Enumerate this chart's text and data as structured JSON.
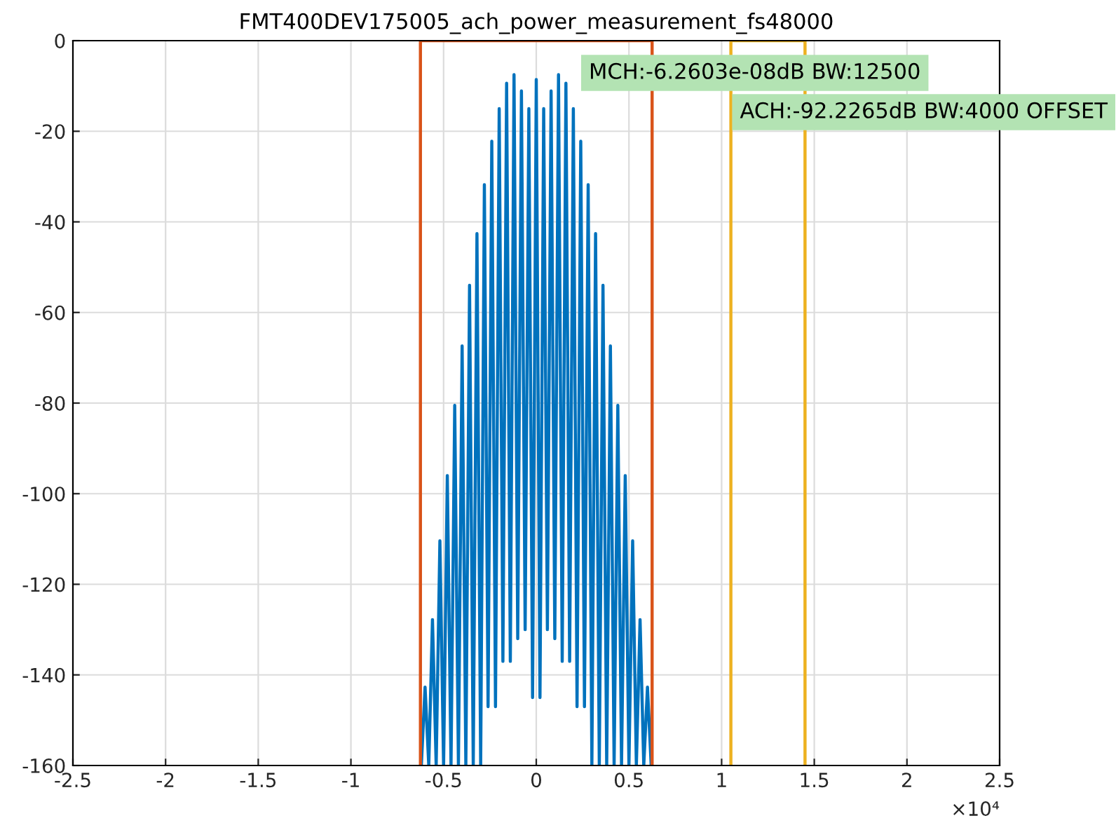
{
  "chart_data": {
    "type": "line",
    "title": "FMT400DEV175005_ach_power_measurement_fs48000",
    "series": [
      {
        "color": "#0072bd",
        "x": [
          -0.62,
          -0.6,
          -0.58,
          -0.56,
          -0.54,
          -0.52,
          -0.5,
          -0.48,
          -0.46,
          -0.44,
          -0.42,
          -0.4,
          -0.38,
          -0.36,
          -0.34,
          -0.32,
          -0.3,
          -0.28,
          -0.26,
          -0.24,
          -0.22,
          -0.2,
          -0.18,
          -0.16,
          -0.14,
          -0.12,
          -0.1,
          -0.08,
          -0.06,
          -0.04,
          -0.02,
          0,
          0.02,
          0.04,
          0.06,
          0.08,
          0.1,
          0.12,
          0.14,
          0.16,
          0.18,
          0.2,
          0.22,
          0.24,
          0.26,
          0.28,
          0.3,
          0.32,
          0.34,
          0.36,
          0.38,
          0.4,
          0.42,
          0.44,
          0.46,
          0.48,
          0.5,
          0.52,
          0.54,
          0.56,
          0.58,
          0.6,
          0.62
        ],
        "values": [
          -160,
          -142.7,
          -160,
          -127.8,
          -160,
          -110.4,
          -160,
          -96,
          -160,
          -80.5,
          -160,
          -67.4,
          -160,
          -54,
          -160,
          -42.6,
          -160,
          -31.8,
          -147,
          -22.2,
          -147,
          -15,
          -137,
          -9.4,
          -137,
          -7.5,
          -132,
          -11.1,
          -130,
          -15,
          -145,
          -8.6,
          -145,
          -15,
          -130,
          -11.1,
          -132,
          -7.5,
          -137,
          -9.4,
          -137,
          -15,
          -147,
          -22.2,
          -147,
          -31.8,
          -160,
          -42.6,
          -160,
          -54,
          -160,
          -67.4,
          -160,
          -80.5,
          -160,
          -96,
          -160,
          -110.4,
          -160,
          -127.8,
          -160,
          -142.7,
          -160
        ]
      },
      {
        "color": "#d95319",
        "x": [
          -0.625,
          -0.625,
          0.625,
          0.625
        ],
        "values": [
          -160,
          0,
          0,
          -160
        ]
      },
      {
        "color": "#edb120",
        "x": [
          1.05,
          1.05,
          1.45,
          1.45
        ],
        "values": [
          -160,
          0,
          0,
          -160
        ]
      }
    ],
    "xlim": [
      -2.5,
      2.5
    ],
    "xticks": [
      -2.5,
      -2,
      -1.5,
      -1,
      -0.5,
      0,
      0.5,
      1,
      1.5,
      2,
      2.5
    ],
    "ylim": [
      -160,
      0
    ],
    "yticks": [
      -160,
      -140,
      -120,
      -100,
      -80,
      -60,
      -40,
      -20,
      0
    ],
    "grid": true,
    "annotations": [
      "MCH:-6.2603e-08dB BW:12500",
      "ACH:-92.2265dB BW:4000 OFFSET",
      "×10⁴"
    ]
  }
}
